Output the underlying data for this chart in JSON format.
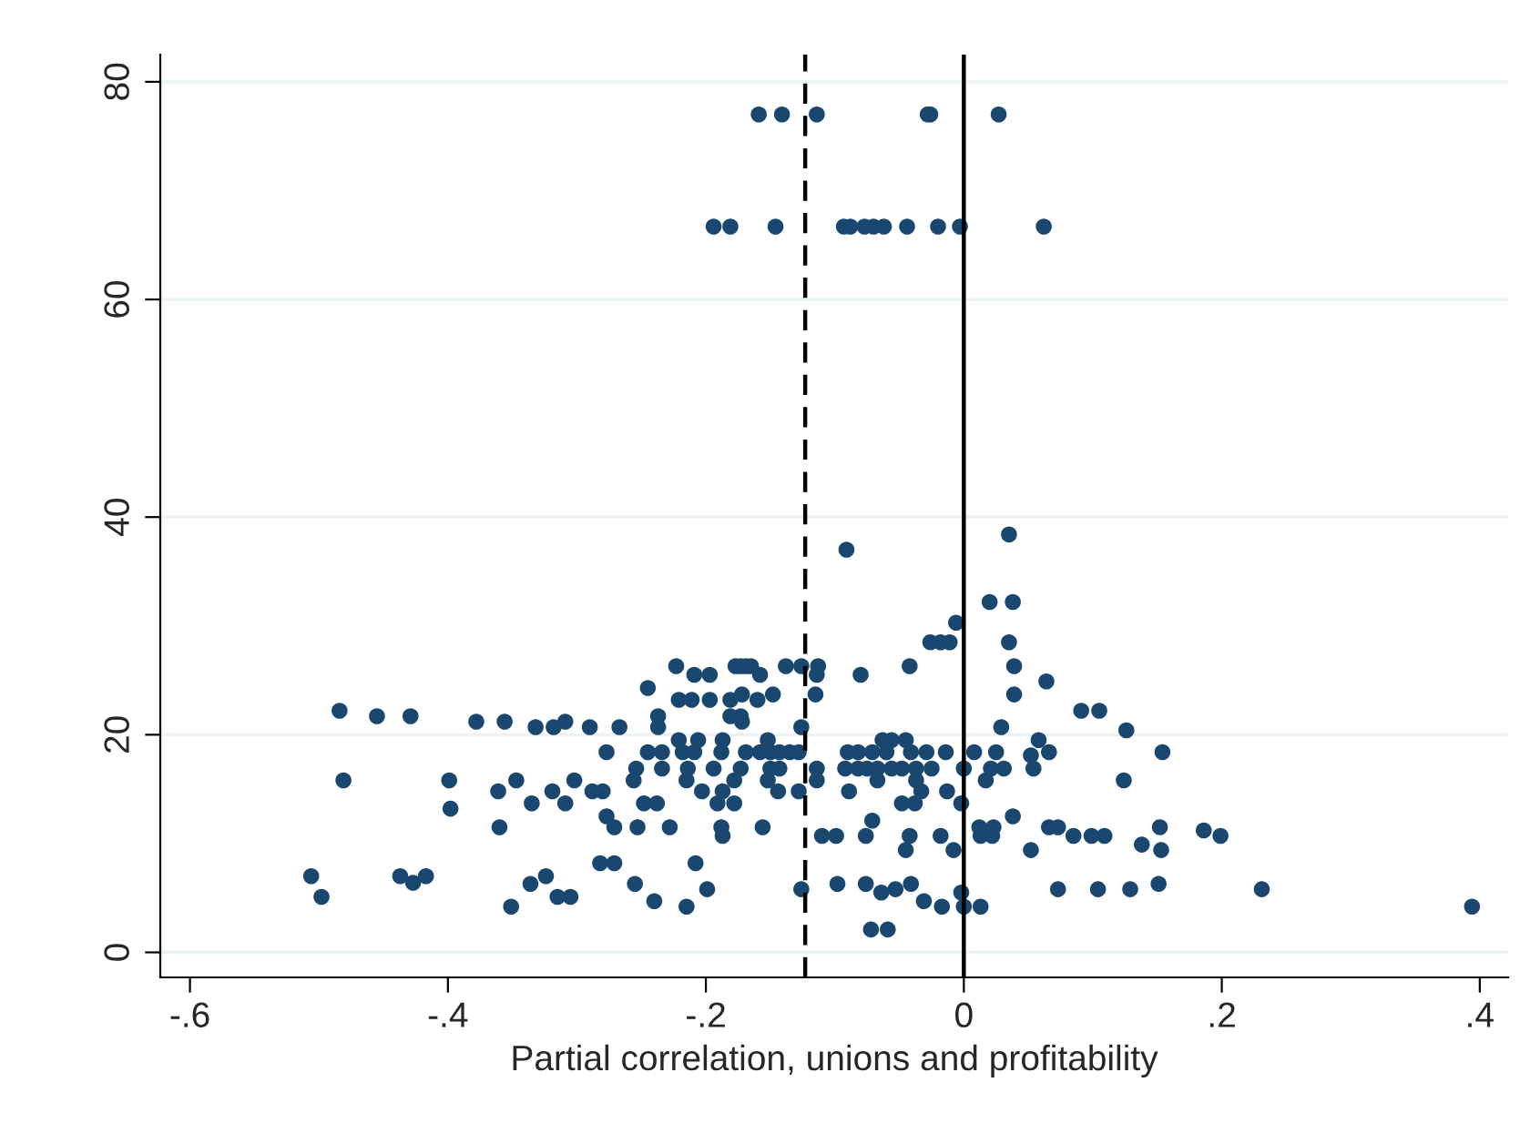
{
  "chart_data": {
    "type": "scatter",
    "xlabel": "Partial correlation, unions and profitability",
    "xlim": [
      -0.623,
      0.422
    ],
    "ylim": [
      -2.3,
      82.5
    ],
    "xticks": [
      {
        "value": -0.6,
        "label": "-.6"
      },
      {
        "value": -0.4,
        "label": "-.4"
      },
      {
        "value": -0.2,
        "label": "-.2"
      },
      0,
      {
        "value": 0.2,
        "label": ".2"
      },
      {
        "value": 0.4,
        "label": ".4"
      }
    ],
    "yticks": [
      0,
      20,
      40,
      60,
      80
    ],
    "grid": "y",
    "marker": "circle",
    "ref_lines": [
      {
        "axis": "x",
        "value": -0.123,
        "line_style": "dashed",
        "color": "#000000"
      },
      {
        "axis": "x",
        "value": 0,
        "line_style": "solid",
        "color": "#000000"
      }
    ],
    "series": [
      {
        "color": "#1a476f",
        "x": [
          -0.159,
          -0.141,
          -0.114,
          -0.028,
          -0.026,
          0.027,
          -0.194,
          -0.181,
          -0.146,
          -0.093,
          -0.088,
          -0.077,
          -0.07,
          -0.062,
          -0.044,
          -0.02,
          -0.003,
          0.062,
          0.035,
          -0.091,
          0.02,
          0.038,
          -0.006,
          -0.026,
          -0.018,
          -0.011,
          0.035,
          -0.223,
          -0.177,
          -0.173,
          -0.169,
          -0.165,
          -0.138,
          -0.126,
          -0.113,
          -0.042,
          0.039,
          -0.209,
          -0.197,
          -0.158,
          -0.114,
          -0.08,
          0.064,
          -0.245,
          -0.172,
          -0.148,
          -0.115,
          0.039,
          -0.221,
          -0.211,
          -0.197,
          -0.181,
          -0.16,
          -0.484,
          0.091,
          0.105,
          -0.455,
          -0.429,
          -0.237,
          -0.181,
          -0.173,
          -0.378,
          -0.356,
          -0.309,
          -0.172,
          -0.332,
          -0.318,
          -0.29,
          -0.267,
          -0.237,
          -0.126,
          0.029,
          0.126,
          -0.221,
          -0.206,
          -0.187,
          -0.152,
          -0.063,
          -0.056,
          -0.045,
          0.058,
          -0.277,
          -0.245,
          -0.234,
          -0.218,
          -0.209,
          -0.188,
          -0.169,
          -0.158,
          -0.15,
          -0.143,
          -0.135,
          -0.128,
          -0.09,
          -0.082,
          -0.071,
          -0.06,
          -0.041,
          -0.029,
          -0.014,
          0.008,
          0.025,
          0.066,
          0.154,
          0.052,
          -0.254,
          -0.234,
          -0.214,
          -0.194,
          -0.173,
          -0.15,
          -0.143,
          -0.114,
          -0.092,
          -0.082,
          -0.075,
          -0.067,
          -0.056,
          -0.048,
          -0.037,
          -0.025,
          0.0,
          0.021,
          0.031,
          0.054,
          -0.481,
          -0.399,
          -0.347,
          -0.302,
          -0.256,
          -0.215,
          -0.178,
          -0.152,
          -0.114,
          -0.067,
          -0.037,
          0.017,
          0.124,
          -0.361,
          -0.319,
          -0.288,
          -0.28,
          -0.203,
          -0.187,
          -0.144,
          -0.128,
          -0.089,
          -0.033,
          -0.013,
          -0.335,
          -0.309,
          -0.248,
          -0.238,
          -0.191,
          -0.178,
          -0.048,
          -0.038,
          -0.002,
          -0.398,
          -0.277,
          0.038,
          -0.071,
          -0.36,
          -0.271,
          -0.253,
          -0.228,
          -0.188,
          -0.156,
          0.012,
          0.023,
          0.066,
          0.073,
          0.152,
          0.186,
          -0.187,
          -0.11,
          -0.099,
          -0.076,
          -0.042,
          -0.018,
          0.013,
          0.022,
          0.085,
          0.099,
          0.109,
          0.199,
          0.138,
          -0.045,
          -0.008,
          0.052,
          0.153,
          -0.282,
          -0.271,
          -0.208,
          -0.506,
          -0.437,
          -0.417,
          -0.324,
          -0.427,
          -0.336,
          -0.255,
          -0.098,
          -0.076,
          -0.041,
          0.151,
          -0.199,
          -0.126,
          -0.053,
          0.073,
          0.104,
          0.129,
          0.231,
          -0.002,
          -0.064,
          -0.498,
          -0.315,
          -0.305,
          -0.24,
          -0.031,
          -0.351,
          -0.215,
          -0.017,
          0.0,
          0.013,
          0.394,
          -0.072,
          -0.059
        ],
        "values": [
          77,
          77,
          77,
          77,
          77,
          77,
          66.7,
          66.7,
          66.7,
          66.7,
          66.7,
          66.7,
          66.7,
          66.7,
          66.7,
          66.7,
          66.7,
          66.7,
          38.4,
          37.0,
          32.2,
          32.2,
          30.3,
          28.5,
          28.5,
          28.5,
          28.5,
          26.3,
          26.3,
          26.3,
          26.3,
          26.3,
          26.3,
          26.3,
          26.3,
          26.3,
          26.3,
          25.5,
          25.5,
          25.5,
          25.5,
          25.5,
          24.9,
          24.3,
          23.7,
          23.7,
          23.7,
          23.7,
          23.2,
          23.2,
          23.2,
          23.2,
          23.2,
          22.2,
          22.2,
          22.2,
          21.7,
          21.7,
          21.7,
          21.7,
          21.7,
          21.2,
          21.2,
          21.2,
          21.2,
          20.7,
          20.7,
          20.7,
          20.7,
          20.7,
          20.7,
          20.7,
          20.4,
          19.5,
          19.5,
          19.5,
          19.5,
          19.5,
          19.5,
          19.5,
          19.5,
          18.4,
          18.4,
          18.4,
          18.4,
          18.4,
          18.4,
          18.4,
          18.4,
          18.4,
          18.4,
          18.4,
          18.4,
          18.4,
          18.4,
          18.4,
          18.4,
          18.4,
          18.4,
          18.4,
          18.4,
          18.4,
          18.4,
          18.4,
          18.1,
          16.9,
          16.9,
          16.9,
          16.9,
          16.9,
          16.9,
          16.9,
          16.9,
          16.9,
          16.9,
          16.9,
          16.9,
          16.9,
          16.9,
          16.9,
          16.9,
          16.9,
          16.9,
          16.9,
          16.9,
          15.8,
          15.8,
          15.8,
          15.8,
          15.8,
          15.8,
          15.8,
          15.8,
          15.8,
          15.8,
          15.8,
          15.8,
          15.8,
          14.8,
          14.8,
          14.8,
          14.8,
          14.8,
          14.8,
          14.8,
          14.8,
          14.8,
          14.8,
          14.8,
          13.7,
          13.7,
          13.7,
          13.7,
          13.7,
          13.7,
          13.7,
          13.7,
          13.7,
          13.2,
          12.5,
          12.5,
          12.1,
          11.5,
          11.5,
          11.5,
          11.5,
          11.5,
          11.5,
          11.5,
          11.5,
          11.5,
          11.5,
          11.5,
          11.2,
          10.7,
          10.7,
          10.7,
          10.7,
          10.7,
          10.7,
          10.7,
          10.7,
          10.7,
          10.7,
          10.7,
          10.7,
          9.9,
          9.4,
          9.4,
          9.4,
          9.4,
          8.2,
          8.2,
          8.2,
          7.0,
          7.0,
          7.0,
          7.0,
          6.4,
          6.3,
          6.3,
          6.3,
          6.3,
          6.3,
          6.3,
          5.8,
          5.8,
          5.8,
          5.8,
          5.8,
          5.8,
          5.8,
          5.5,
          5.5,
          5.1,
          5.1,
          5.1,
          4.7,
          4.7,
          4.2,
          4.2,
          4.2,
          4.2,
          4.2,
          4.2,
          2.1,
          2.1
        ]
      }
    ]
  }
}
